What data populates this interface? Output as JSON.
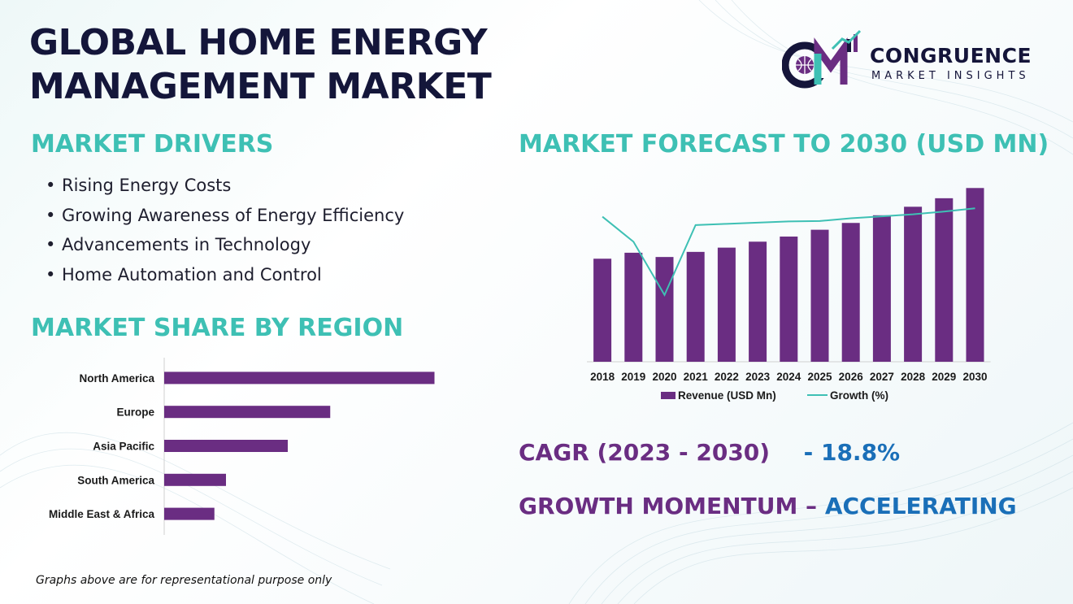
{
  "title": {
    "line1": "GLOBAL HOME ENERGY",
    "line2": "MANAGEMENT MARKET"
  },
  "logo": {
    "name": "CONGRUENCE",
    "tagline": "MARKET INSIGHTS",
    "icon": "cm-logo-icon"
  },
  "drivers": {
    "heading": "MARKET DRIVERS",
    "bullet": "•",
    "items": [
      "Rising Energy Costs",
      "Growing Awareness of Energy Efficiency",
      "Advancements in Technology",
      "Home Automation and Control"
    ]
  },
  "region": {
    "heading": "MARKET SHARE BY REGION"
  },
  "forecast": {
    "heading": "MARKET FORECAST TO 2030 (USD MN)"
  },
  "cagr": {
    "label": "CAGR (2023 - 2030)",
    "value": "- 18.8%"
  },
  "momentum": {
    "label": "GROWTH MOMENTUM –",
    "value": "ACCELERATING"
  },
  "footnote": "Graphs above are for representational purpose only",
  "colors": {
    "bar": "#6a2d82",
    "line": "#3ec0b4",
    "heading": "#3ec0b4",
    "title": "#14163a"
  },
  "chart_data": [
    {
      "type": "bar",
      "orientation": "horizontal",
      "categories": [
        "North America",
        "Europe",
        "Asia Pacific",
        "South America",
        "Middle East & Africa"
      ],
      "values": [
        35,
        21.5,
        16,
        8,
        6.5
      ],
      "title": "",
      "xlabel": "",
      "ylabel": "",
      "xlim": [
        0,
        40
      ],
      "grid": false
    },
    {
      "type": "bar",
      "categories": [
        "2018",
        "2019",
        "2020",
        "2021",
        "2022",
        "2023",
        "2024",
        "2025",
        "2026",
        "2027",
        "2028",
        "2029",
        "2030"
      ],
      "series": [
        {
          "name": "Revenue (USD Mn)",
          "type": "bar",
          "values": [
            121,
            128,
            123,
            129,
            134,
            141,
            147,
            155,
            163,
            172,
            182,
            192,
            204
          ]
        },
        {
          "name": "Growth (%)",
          "type": "line",
          "values": [
            16.5,
            10.2,
            -3.2,
            14.4,
            14.7,
            15.0,
            15.3,
            15.4,
            16.1,
            16.6,
            17.1,
            17.8,
            18.6
          ]
        }
      ],
      "ylim": [
        0,
        210
      ],
      "y2lim": [
        -20,
        25
      ],
      "legend": "bottom",
      "grid": false,
      "title": "",
      "xlabel": "",
      "ylabel": ""
    }
  ]
}
